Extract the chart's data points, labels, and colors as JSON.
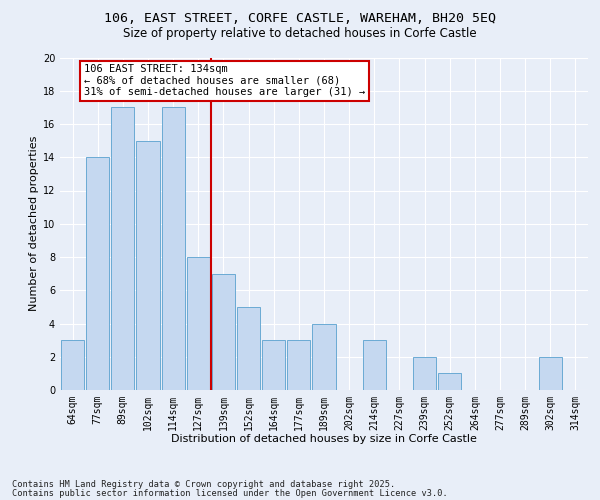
{
  "title_line1": "106, EAST STREET, CORFE CASTLE, WAREHAM, BH20 5EQ",
  "title_line2": "Size of property relative to detached houses in Corfe Castle",
  "xlabel": "Distribution of detached houses by size in Corfe Castle",
  "ylabel": "Number of detached properties",
  "categories": [
    "64sqm",
    "77sqm",
    "89sqm",
    "102sqm",
    "114sqm",
    "127sqm",
    "139sqm",
    "152sqm",
    "164sqm",
    "177sqm",
    "189sqm",
    "202sqm",
    "214sqm",
    "227sqm",
    "239sqm",
    "252sqm",
    "264sqm",
    "277sqm",
    "289sqm",
    "302sqm",
    "314sqm"
  ],
  "values": [
    3,
    14,
    17,
    15,
    17,
    8,
    7,
    5,
    3,
    3,
    4,
    0,
    3,
    0,
    2,
    1,
    0,
    0,
    0,
    2,
    0
  ],
  "bar_color": "#c5d8f0",
  "bar_edge_color": "#6aaad4",
  "vline_x": 5.5,
  "vline_color": "#cc0000",
  "annotation_text": "106 EAST STREET: 134sqm\n← 68% of detached houses are smaller (68)\n31% of semi-detached houses are larger (31) →",
  "annotation_box_color": "#ffffff",
  "annotation_box_edge": "#cc0000",
  "ylim": [
    0,
    20
  ],
  "yticks": [
    0,
    2,
    4,
    6,
    8,
    10,
    12,
    14,
    16,
    18,
    20
  ],
  "background_color": "#e8eef8",
  "grid_color": "#ffffff",
  "footer_line1": "Contains HM Land Registry data © Crown copyright and database right 2025.",
  "footer_line2": "Contains public sector information licensed under the Open Government Licence v3.0.",
  "title_fontsize": 9.5,
  "subtitle_fontsize": 8.5,
  "xlabel_fontsize": 8,
  "ylabel_fontsize": 8,
  "tick_fontsize": 7,
  "annotation_fontsize": 7.5,
  "footer_fontsize": 6.2
}
